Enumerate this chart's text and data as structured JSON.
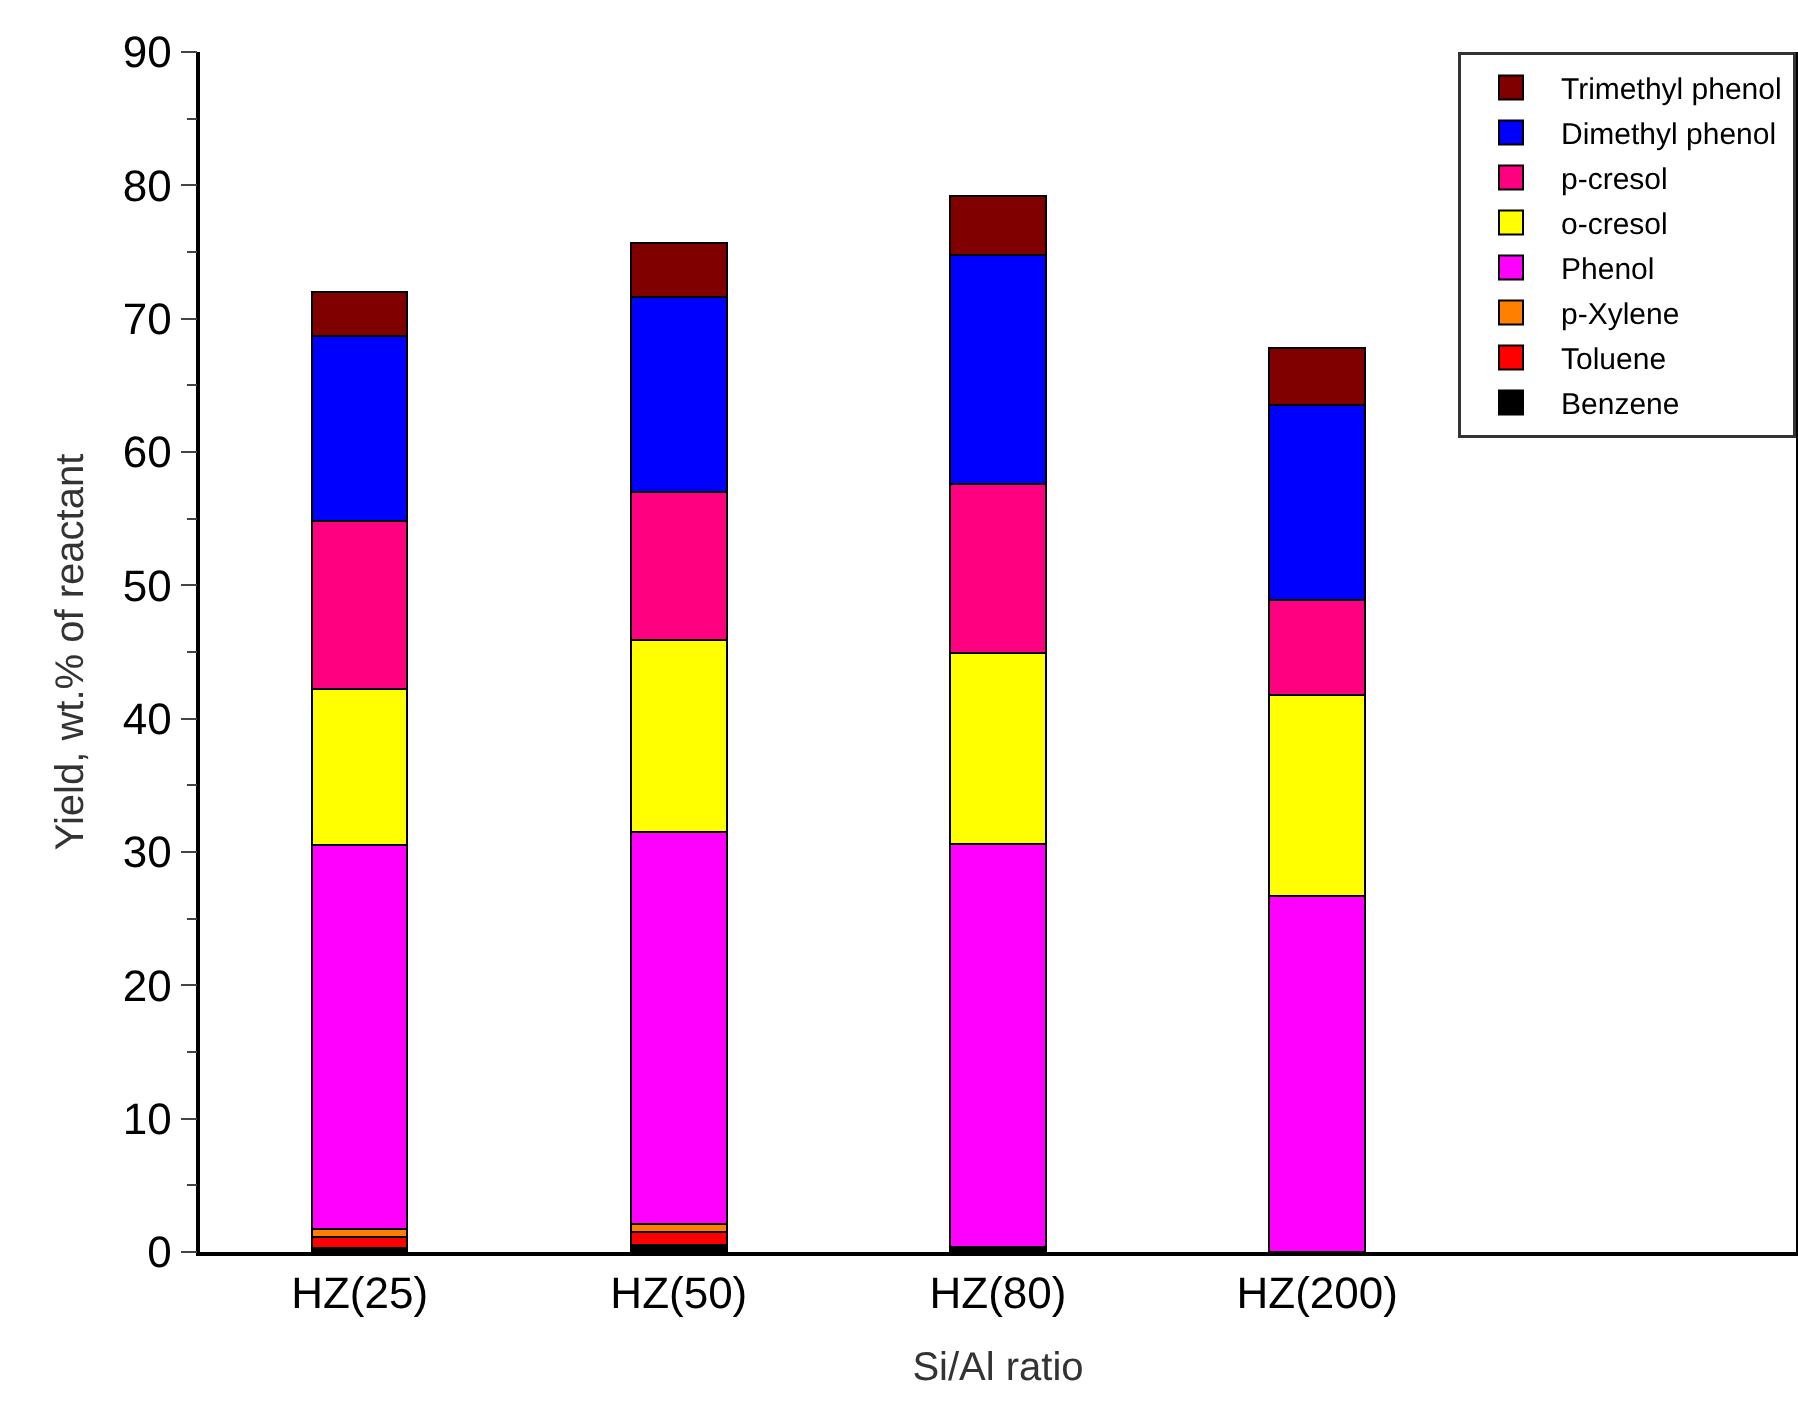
{
  "chart_data": {
    "type": "bar",
    "stacked": true,
    "xlabel": "Si/Al ratio",
    "ylabel": "Yield, wt.% of reactant",
    "categories": [
      "HZ(25)",
      "HZ(50)",
      "HZ(80)",
      "HZ(200)"
    ],
    "series": [
      {
        "name": "Benzene",
        "color": "#000000",
        "values": [
          0.3,
          0.5,
          0.2,
          0
        ]
      },
      {
        "name": "Toluene",
        "color": "#ff0000",
        "values": [
          0.8,
          1.0,
          0.2,
          0
        ]
      },
      {
        "name": "p-Xylene",
        "color": "#ff8000",
        "values": [
          0.6,
          0.6,
          0,
          0
        ]
      },
      {
        "name": "Phenol",
        "color": "#ff00ff",
        "values": [
          28.8,
          29.4,
          30.2,
          26.7
        ]
      },
      {
        "name": "o-cresol",
        "color": "#ffff00",
        "values": [
          11.7,
          14.4,
          14.3,
          15.1
        ]
      },
      {
        "name": "p-cresol",
        "color": "#ff0080",
        "values": [
          12.6,
          11.1,
          12.7,
          7.1
        ]
      },
      {
        "name": "Dimethyl phenol",
        "color": "#0000ff",
        "values": [
          13.9,
          14.6,
          17.2,
          14.6
        ]
      },
      {
        "name": "Trimethyl phenol",
        "color": "#800000",
        "values": [
          3.3,
          4.1,
          4.4,
          4.3
        ]
      }
    ],
    "ylim": [
      0,
      90
    ],
    "yticks": [
      0,
      10,
      20,
      30,
      40,
      50,
      60,
      70,
      80,
      90
    ],
    "grid": false,
    "legend": "top right"
  }
}
